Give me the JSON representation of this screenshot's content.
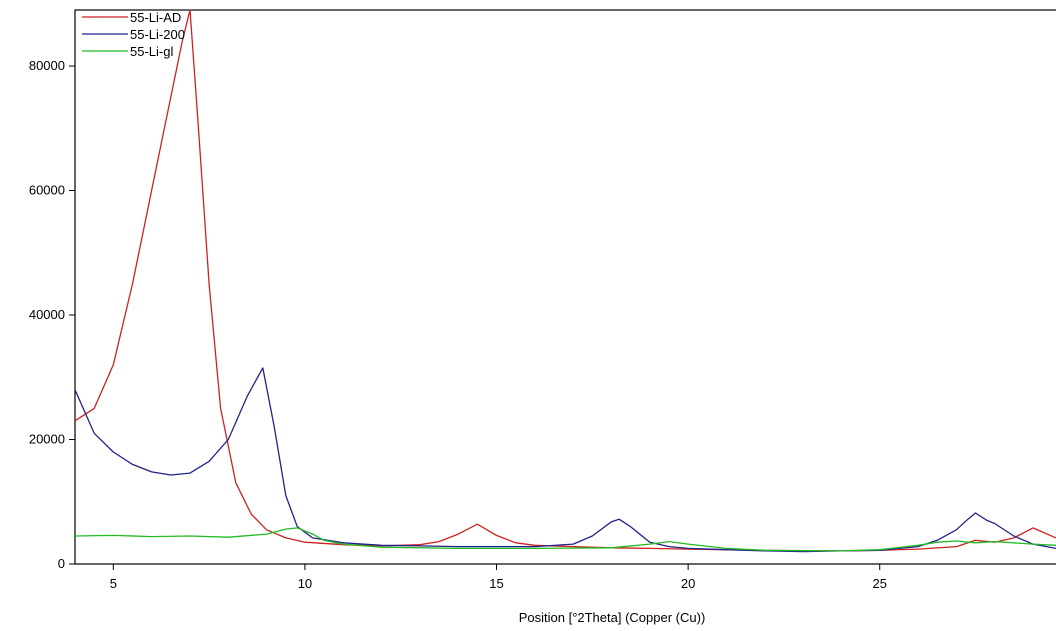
{
  "chart_data": {
    "type": "line",
    "title": "",
    "xlabel": "Position [°2Theta] (Copper (Cu))",
    "ylabel": "",
    "xlim": [
      4.0,
      29.6
    ],
    "ylim": [
      0,
      89000
    ],
    "x_ticks": [
      5,
      10,
      15,
      20,
      25
    ],
    "x_tick_labels": [
      "5",
      "10",
      "15",
      "20",
      "25"
    ],
    "y_ticks": [
      0,
      20000,
      40000,
      60000,
      80000
    ],
    "y_tick_labels": [
      "0",
      "20000",
      "40000",
      "60000",
      "80000"
    ],
    "grid": false,
    "legend_position": "top-left",
    "series": [
      {
        "name": "55-Li-AD",
        "color": "#cc2222",
        "x": [
          4.0,
          4.5,
          5.0,
          5.5,
          6.0,
          6.5,
          6.8,
          7.0,
          7.2,
          7.5,
          7.8,
          8.2,
          8.6,
          9.0,
          9.5,
          10.0,
          11.0,
          12.0,
          13.0,
          13.5,
          14.0,
          14.5,
          15.0,
          15.5,
          16.0,
          17.0,
          18.0,
          19.0,
          20.0,
          21.0,
          22.0,
          23.0,
          24.0,
          25.0,
          26.0,
          27.0,
          27.5,
          28.0,
          28.5,
          29.0,
          29.6
        ],
        "y": [
          23000,
          25000,
          32000,
          45000,
          60000,
          75000,
          84000,
          89000,
          72000,
          45000,
          25000,
          13000,
          8000,
          5500,
          4200,
          3500,
          3100,
          2900,
          3100,
          3600,
          4800,
          6400,
          4600,
          3400,
          3000,
          2800,
          2600,
          2500,
          2400,
          2300,
          2200,
          2100,
          2100,
          2200,
          2400,
          2800,
          3800,
          3500,
          4200,
          5800,
          4200
        ]
      },
      {
        "name": "55-Li-200",
        "color": "#22228c",
        "x": [
          4.0,
          4.5,
          5.0,
          5.5,
          6.0,
          6.5,
          7.0,
          7.5,
          8.0,
          8.5,
          8.9,
          9.2,
          9.5,
          9.8,
          10.2,
          11.0,
          12.0,
          13.0,
          14.0,
          15.0,
          16.0,
          17.0,
          17.5,
          18.0,
          18.2,
          18.5,
          19.0,
          19.5,
          20.0,
          21.0,
          22.0,
          23.0,
          24.0,
          25.0,
          26.0,
          26.5,
          27.0,
          27.3,
          27.5,
          27.8,
          28.0,
          28.5,
          29.0,
          29.6
        ],
        "y": [
          28000,
          21000,
          18000,
          16000,
          14800,
          14300,
          14600,
          16500,
          20000,
          27000,
          31500,
          22000,
          11000,
          6000,
          4200,
          3400,
          3000,
          2900,
          2800,
          2800,
          2800,
          3200,
          4500,
          6800,
          7200,
          6000,
          3500,
          2800,
          2500,
          2300,
          2100,
          2000,
          2100,
          2200,
          2800,
          3800,
          5500,
          7200,
          8200,
          7000,
          6500,
          4500,
          3200,
          2500
        ]
      },
      {
        "name": "55-Li-gl",
        "color": "#22bb22",
        "x": [
          4.0,
          5.0,
          6.0,
          7.0,
          8.0,
          9.0,
          9.5,
          9.8,
          10.2,
          10.5,
          11.0,
          12.0,
          14.0,
          16.0,
          18.0,
          19.0,
          19.5,
          20.0,
          21.0,
          22.0,
          24.0,
          25.0,
          26.0,
          26.5,
          27.0,
          27.5,
          28.0,
          29.0,
          29.6
        ],
        "y": [
          4500,
          4600,
          4400,
          4500,
          4300,
          4800,
          5600,
          5800,
          4800,
          3800,
          3200,
          2700,
          2500,
          2500,
          2600,
          3200,
          3600,
          3200,
          2500,
          2200,
          2100,
          2300,
          3000,
          3500,
          3700,
          3400,
          3600,
          3200,
          3000
        ]
      }
    ]
  }
}
